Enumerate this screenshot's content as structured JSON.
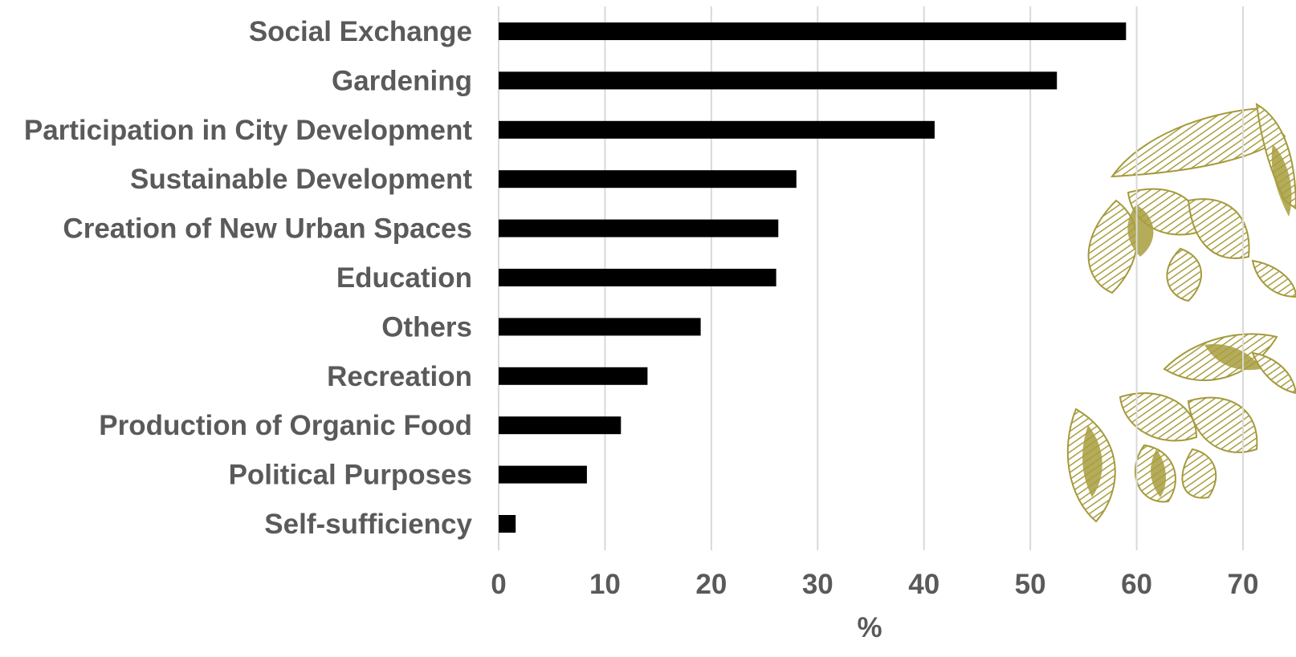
{
  "chart_data": {
    "type": "bar",
    "orientation": "horizontal",
    "categories": [
      "Social Exchange",
      "Gardening",
      "Participation in City Development",
      "Sustainable Development",
      "Creation of New Urban Spaces",
      "Education",
      "Others",
      "Recreation",
      "Production of Organic Food",
      "Political Purposes",
      "Self-sufficiency"
    ],
    "values": [
      59,
      52.5,
      41,
      28,
      26.3,
      26.1,
      19,
      14,
      11.5,
      8.3,
      1.6
    ],
    "xlabel": "%",
    "ylabel": "",
    "xlim": [
      0,
      70
    ],
    "xticks": [
      "0",
      "10",
      "20",
      "30",
      "40",
      "50",
      "60",
      "70"
    ],
    "grid": "vertical",
    "bar_color": "#000000",
    "label_color": "#5a5a5a",
    "grid_color": "#d9d9d9",
    "decoration_color": "#a89e3e",
    "decoration": "leaf-illustration"
  }
}
